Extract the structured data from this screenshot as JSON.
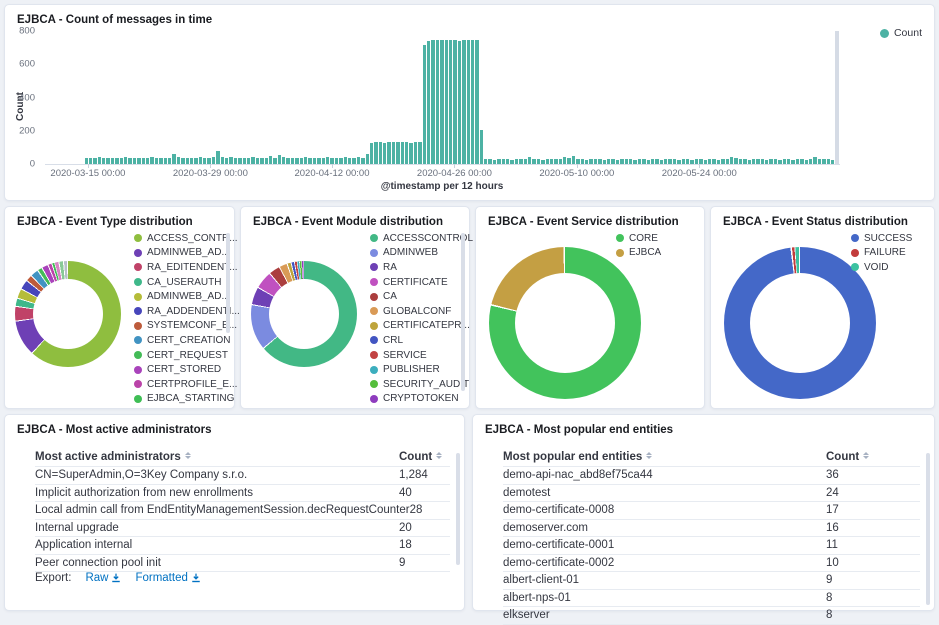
{
  "messages_panel": {
    "title": "EJBCA - Count of messages in time",
    "legend_label": "Count",
    "chart_data": {
      "type": "bar",
      "title": "EJBCA - Count of messages in time",
      "xlabel": "@timestamp per 12 hours",
      "ylabel": "Count",
      "ylim": [
        0,
        800
      ],
      "y_ticks": [
        "0",
        "200",
        "400",
        "600",
        "800"
      ],
      "x_ticks": [
        {
          "label": "2020-03-15 00:00",
          "pos_pct": 5.4
        },
        {
          "label": "2020-03-29 00:00",
          "pos_pct": 20.8
        },
        {
          "label": "2020-04-12 00:00",
          "pos_pct": 36.1
        },
        {
          "label": "2020-04-26 00:00",
          "pos_pct": 51.5
        },
        {
          "label": "2020-05-10 00:00",
          "pos_pct": 66.9
        },
        {
          "label": "2020-05-24 00:00",
          "pos_pct": 82.3
        }
      ],
      "bar_color": "#4db2a4",
      "partial_bucket_color": "#d5dbe5",
      "last_bucket_partial": true,
      "values": [
        0,
        0,
        0,
        0,
        0,
        0,
        0,
        0,
        0,
        34,
        38,
        36,
        40,
        36,
        38,
        35,
        39,
        37,
        40,
        36,
        38,
        37,
        39,
        36,
        40,
        38,
        36,
        39,
        37,
        62,
        40,
        38,
        36,
        39,
        37,
        40,
        38,
        36,
        44,
        76,
        42,
        38,
        40,
        37,
        39,
        38,
        36,
        40,
        38,
        37,
        39,
        48,
        38,
        52,
        40,
        38,
        36,
        39,
        37,
        40,
        38,
        36,
        39,
        37,
        40,
        38,
        36,
        38,
        40,
        37,
        39,
        45,
        38,
        58,
        126,
        130,
        132,
        129,
        131,
        130,
        133,
        130,
        131,
        129,
        132,
        130,
        718,
        742,
        746,
        744,
        745,
        743,
        746,
        744,
        742,
        745,
        743,
        746,
        744,
        205,
        28,
        30,
        26,
        32,
        28,
        30,
        27,
        29,
        31,
        28,
        44,
        30,
        28,
        27,
        29,
        31,
        28,
        30,
        42,
        34,
        48,
        30,
        28,
        27,
        29,
        28,
        30,
        26,
        28,
        30,
        27,
        29,
        28,
        30,
        26,
        28,
        29,
        27,
        30,
        28,
        26,
        29,
        28,
        30,
        27,
        28,
        30,
        26,
        28,
        29,
        27,
        30,
        28,
        26,
        29,
        28,
        44,
        36,
        30,
        28,
        27,
        29,
        28,
        30,
        26,
        28,
        29,
        27,
        28,
        30,
        26,
        29,
        28,
        27,
        30,
        44,
        32,
        30,
        28,
        26,
        800
      ]
    }
  },
  "donut_panels": [
    {
      "title": "EJBCA - Event Type distribution",
      "chart_data": {
        "type": "pie",
        "slices": [
          {
            "label": "ACCESS_CONTR...",
            "color": "#8fbe3f",
            "pct": 62.0,
            "in_legend": true
          },
          {
            "label": "ADMINWEB_AD...",
            "color": "#6e40b5",
            "pct": 11.0,
            "in_legend": true
          },
          {
            "label": "RA_EDITENDENT...",
            "color": "#c04268",
            "pct": 4.5,
            "in_legend": true
          },
          {
            "label": "CA_USERAUTH",
            "color": "#3fb88a",
            "pct": 2.5,
            "in_legend": true
          },
          {
            "label": "ADMINWEB_AD...",
            "color": "#b5bc39",
            "pct": 3.0,
            "in_legend": true
          },
          {
            "label": "RA_ADDENDENTI...",
            "color": "#4746bb",
            "pct": 3.0,
            "in_legend": true
          },
          {
            "label": "SYSTEMCONF_E...",
            "color": "#bd5b3b",
            "pct": 2.0,
            "in_legend": true
          },
          {
            "label": "CERT_CREATION",
            "color": "#4193c2",
            "pct": 2.5,
            "in_legend": true
          },
          {
            "label": "CERT_REQUEST",
            "color": "#43bb57",
            "pct": 1.5,
            "in_legend": true
          },
          {
            "label": "CERT_STORED",
            "color": "#a943bb",
            "pct": 2.0,
            "in_legend": true
          },
          {
            "label": "CERTPROFILE_E...",
            "color": "#bb43a9",
            "pct": 1.2,
            "in_legend": true
          },
          {
            "label": "EJBCA_STARTING",
            "color": "#3fbe55",
            "pct": 0.8,
            "in_legend": true
          },
          {
            "label": "",
            "color": "#d884c4",
            "pct": 1.4,
            "in_legend": false
          },
          {
            "label": "",
            "color": "#89c997",
            "pct": 1.4,
            "in_legend": false
          },
          {
            "label": "",
            "color": "#b8bfc9",
            "pct": 1.2,
            "in_legend": false
          }
        ]
      }
    },
    {
      "title": "EJBCA - Event Module distribution",
      "chart_data": {
        "type": "pie",
        "slices": [
          {
            "label": "ACCESSCONTROL",
            "color": "#42b885",
            "pct": 64.0,
            "in_legend": true
          },
          {
            "label": "ADMINWEB",
            "color": "#7b8be0",
            "pct": 14.0,
            "in_legend": true
          },
          {
            "label": "RA",
            "color": "#6e40b5",
            "pct": 5.5,
            "in_legend": true
          },
          {
            "label": "CERTIFICATE",
            "color": "#c051c0",
            "pct": 5.5,
            "in_legend": true
          },
          {
            "label": "CA",
            "color": "#ab3e3e",
            "pct": 3.5,
            "in_legend": true
          },
          {
            "label": "GLOBALCONF",
            "color": "#d99a56",
            "pct": 2.5,
            "in_legend": true
          },
          {
            "label": "CERTIFICATEPR...",
            "color": "#bea43c",
            "pct": 1.2,
            "in_legend": true
          },
          {
            "label": "CRL",
            "color": "#4255c2",
            "pct": 1.0,
            "in_legend": true
          },
          {
            "label": "SERVICE",
            "color": "#c24242",
            "pct": 0.8,
            "in_legend": true
          },
          {
            "label": "PUBLISHER",
            "color": "#3caebe",
            "pct": 0.7,
            "in_legend": true
          },
          {
            "label": "SECURITY_AUDIT",
            "color": "#55be3c",
            "pct": 0.7,
            "in_legend": true
          },
          {
            "label": "CRYPTOTOKEN",
            "color": "#8e3cbe",
            "pct": 0.6,
            "in_legend": true
          }
        ]
      }
    },
    {
      "title": "EJBCA - Event Service distribution",
      "chart_data": {
        "type": "pie",
        "slices": [
          {
            "label": "CORE",
            "color": "#42c35c",
            "pct": 79.0,
            "in_legend": true
          },
          {
            "label": "EJBCA",
            "color": "#c49f43",
            "pct": 21.0,
            "in_legend": true
          }
        ]
      }
    },
    {
      "title": "EJBCA - Event Status distribution",
      "chart_data": {
        "type": "pie",
        "slices": [
          {
            "label": "SUCCESS",
            "color": "#4468c8",
            "pct": 98.3,
            "in_legend": true
          },
          {
            "label": "FAILURE",
            "color": "#c23c3c",
            "pct": 0.7,
            "in_legend": true
          },
          {
            "label": "VOID",
            "color": "#3cc2a0",
            "pct": 1.0,
            "in_legend": true
          }
        ]
      }
    }
  ],
  "table_panels": [
    {
      "title": "EJBCA - Most active administrators",
      "columns": [
        "Most active administrators",
        "Count"
      ],
      "rows": [
        [
          "CN=SuperAdmin,O=3Key Company s.r.o.",
          "1,284"
        ],
        [
          "Implicit authorization from new enrollments",
          "40"
        ],
        [
          "Local admin call from EndEntityManagementSession.decRequestCounter",
          "28"
        ],
        [
          "Internal upgrade",
          "20"
        ],
        [
          "Application internal",
          "18"
        ],
        [
          "Peer connection pool init",
          "9"
        ]
      ],
      "export": {
        "label": "Export:",
        "links": [
          "Raw",
          "Formatted"
        ]
      }
    },
    {
      "title": "EJBCA - Most popular end entities",
      "columns": [
        "Most popular end entities",
        "Count"
      ],
      "rows": [
        [
          "demo-api-nac_abd8ef75ca44",
          "36"
        ],
        [
          "demotest",
          "24"
        ],
        [
          "demo-certificate-0008",
          "17"
        ],
        [
          "demoserver.com",
          "16"
        ],
        [
          "demo-certificate-0001",
          "11"
        ],
        [
          "demo-certificate-0002",
          "10"
        ],
        [
          "albert-client-01",
          "9"
        ],
        [
          "albert-nps-01",
          "8"
        ],
        [
          "elkserver",
          "8"
        ]
      ],
      "export": null
    }
  ]
}
